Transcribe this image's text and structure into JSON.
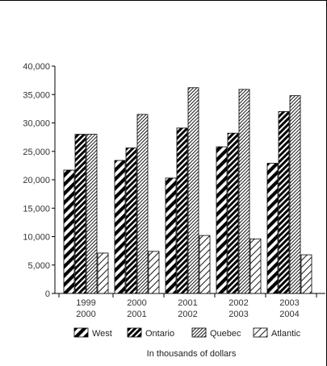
{
  "chart_data": {
    "type": "bar",
    "categories": [
      [
        "1999",
        "2000"
      ],
      [
        "2000",
        "2001"
      ],
      [
        "2001",
        "2002"
      ],
      [
        "2002",
        "2003"
      ],
      [
        "2003",
        "2004"
      ]
    ],
    "series": [
      {
        "name": "West",
        "values": [
          21700,
          23400,
          20300,
          25800,
          22900
        ],
        "pattern": "thick-diagonal"
      },
      {
        "name": "Ontario",
        "values": [
          28000,
          25600,
          29100,
          28200,
          32000
        ],
        "pattern": "thick-diagonal-dense"
      },
      {
        "name": "Quebec",
        "values": [
          28000,
          31500,
          36200,
          35900,
          34800
        ],
        "pattern": "thin-diagonal"
      },
      {
        "name": "Atlantic",
        "values": [
          7100,
          7400,
          10200,
          9600,
          6800
        ],
        "pattern": "sparse-diagonal"
      }
    ],
    "ylim": [
      0,
      40000
    ],
    "yticks": [
      "0",
      "5,000",
      "10,000",
      "15,000",
      "20,000",
      "25,000",
      "30,000",
      "35,000",
      "40,000"
    ],
    "ytick_values": [
      0,
      5000,
      10000,
      15000,
      20000,
      25000,
      30000,
      35000,
      40000
    ],
    "grid": false,
    "legend_position": "bottom",
    "footer_note": "In thousands of dollars",
    "colors": {
      "bar_stroke": "#000000",
      "fill": "#ffffff",
      "hatch": "#000000"
    }
  }
}
